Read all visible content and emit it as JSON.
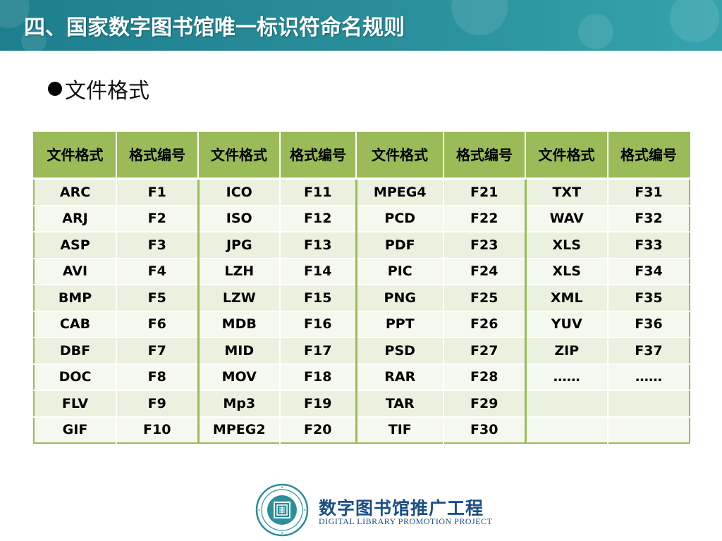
{
  "header": {
    "title": "四、国家数字图书馆唯一标识符命名规则"
  },
  "bullet": {
    "text": "文件格式"
  },
  "table": {
    "headers": [
      "文件格式",
      "格式编号",
      "文件格式",
      "格式编号",
      "文件格式",
      "格式编号",
      "文件格式",
      "格式编号"
    ],
    "rows": [
      [
        "ARC",
        "F1",
        "ICO",
        "F11",
        "MPEG4",
        "F21",
        "TXT",
        "F31"
      ],
      [
        "ARJ",
        "F2",
        "ISO",
        "F12",
        "PCD",
        "F22",
        "WAV",
        "F32"
      ],
      [
        "ASP",
        "F3",
        "JPG",
        "F13",
        "PDF",
        "F23",
        "XLS",
        "F33"
      ],
      [
        "AVI",
        "F4",
        "LZH",
        "F14",
        "PIC",
        "F24",
        "XLS",
        "F34"
      ],
      [
        "BMP",
        "F5",
        "LZW",
        "F15",
        "PNG",
        "F25",
        "XML",
        "F35"
      ],
      [
        "CAB",
        "F6",
        "MDB",
        "F16",
        "PPT",
        "F26",
        "YUV",
        "F36"
      ],
      [
        "DBF",
        "F7",
        "MID",
        "F17",
        "PSD",
        "F27",
        "ZIP",
        "F37"
      ],
      [
        "DOC",
        "F8",
        "MOV",
        "F18",
        "RAR",
        "F28",
        "……",
        "……"
      ],
      [
        "FLV",
        "F9",
        "Mp3",
        "F19",
        "TAR",
        "F29",
        "",
        ""
      ],
      [
        "GIF",
        "F10",
        "MPEG2",
        "F20",
        "TIF",
        "F30",
        "",
        ""
      ]
    ]
  },
  "footer": {
    "logo_icon": "digital-library-seal",
    "name_cn": "数字图书馆推广工程",
    "name_en": "DIGITAL LIBRARY PROMOTION PROJECT"
  },
  "colors": {
    "title_bar": "#2a8e9b",
    "table_header": "#9bbb59",
    "row_band": "#ebf1de",
    "logo": "#1b4f86"
  }
}
